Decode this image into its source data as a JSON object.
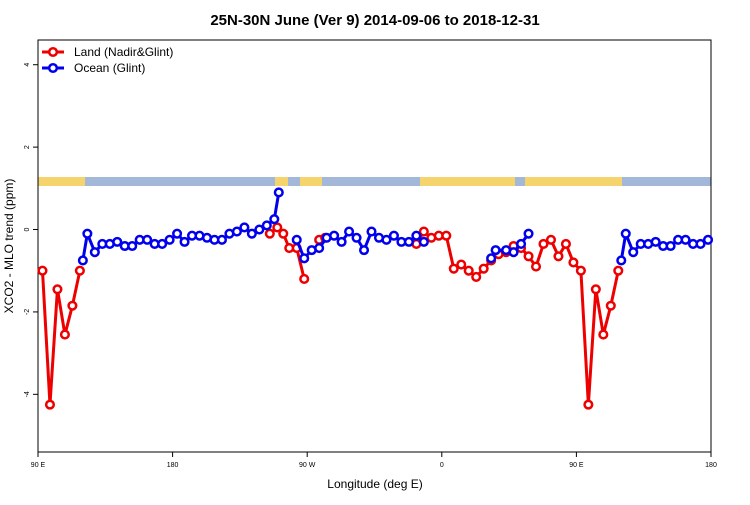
{
  "chart_data": {
    "type": "line",
    "title": "25N-30N June (Ver 9)   2014-09-06 to 2018-12-31",
    "xlabel": "Longitude (deg E)",
    "ylabel": "XCO2 - MLO trend (ppm)",
    "xlim": [
      90,
      540
    ],
    "ylim": [
      -5.4,
      4.6
    ],
    "xticks": [
      {
        "value": 90,
        "label": "90 E"
      },
      {
        "value": 180,
        "label": "180"
      },
      {
        "value": 270,
        "label": "90 W"
      },
      {
        "value": 360,
        "label": "0"
      },
      {
        "value": 450,
        "label": "90 E"
      },
      {
        "value": 540,
        "label": "180"
      }
    ],
    "yticks": [
      -4,
      -2,
      0,
      2,
      4
    ],
    "legend": "top-left",
    "series": [
      {
        "name": "Land (Nadir&Glint)",
        "color": "#ee0000",
        "x": [
          93,
          98,
          103,
          108,
          113,
          118,
          null,
          245,
          250,
          254,
          258,
          263,
          268,
          null,
          278,
          282,
          null,
          343,
          348,
          353,
          358,
          363,
          368,
          373,
          378,
          383,
          388,
          393,
          398,
          403,
          408,
          413,
          418,
          423,
          428,
          433,
          438,
          443,
          448,
          453,
          458,
          463,
          468,
          473,
          478
        ],
        "values": [
          -1.0,
          -4.25,
          -1.45,
          -2.55,
          -1.85,
          -1.0,
          null,
          -0.1,
          0.05,
          -0.1,
          -0.45,
          -0.45,
          -1.2,
          null,
          -0.25,
          -0.2,
          null,
          -0.35,
          -0.05,
          -0.2,
          -0.15,
          -0.15,
          -0.95,
          -0.85,
          -1.0,
          -1.15,
          -0.95,
          -0.75,
          -0.6,
          -0.55,
          -0.4,
          -0.45,
          -0.65,
          -0.9,
          -0.35,
          -0.25,
          -0.65,
          -0.35,
          -0.8,
          -1.0,
          -4.25,
          -1.45,
          -2.55,
          -1.85,
          -1.0
        ]
      },
      {
        "name": "Ocean (Glint)",
        "color": "#0000ee",
        "x": [
          120,
          123,
          128,
          133,
          138,
          143,
          148,
          153,
          158,
          163,
          168,
          173,
          178,
          183,
          188,
          193,
          198,
          203,
          208,
          213,
          218,
          223,
          228,
          233,
          238,
          243,
          248,
          251,
          null,
          263,
          268,
          273,
          278,
          283,
          288,
          293,
          298,
          303,
          308,
          313,
          318,
          323,
          328,
          333,
          338,
          343,
          348,
          null,
          393,
          396,
          403,
          408,
          413,
          418,
          null,
          480,
          483,
          488,
          493,
          498,
          503,
          508,
          513,
          518,
          523,
          528,
          533,
          538
        ],
        "values": [
          -0.75,
          -0.1,
          -0.55,
          -0.35,
          -0.35,
          -0.3,
          -0.4,
          -0.4,
          -0.25,
          -0.25,
          -0.35,
          -0.35,
          -0.25,
          -0.1,
          -0.3,
          -0.15,
          -0.15,
          -0.2,
          -0.25,
          -0.25,
          -0.1,
          -0.05,
          0.05,
          -0.1,
          0.0,
          0.1,
          0.25,
          0.9,
          null,
          -0.25,
          -0.7,
          -0.5,
          -0.45,
          -0.2,
          -0.15,
          -0.3,
          -0.05,
          -0.2,
          -0.5,
          -0.05,
          -0.2,
          -0.25,
          -0.15,
          -0.3,
          -0.3,
          -0.15,
          -0.3,
          null,
          -0.7,
          -0.5,
          -0.5,
          -0.55,
          -0.35,
          -0.1,
          null,
          -0.75,
          -0.1,
          -0.55,
          -0.35,
          -0.35,
          -0.3,
          -0.4,
          -0.4,
          -0.25,
          -0.25,
          -0.35,
          -0.35,
          -0.25
        ]
      }
    ]
  }
}
